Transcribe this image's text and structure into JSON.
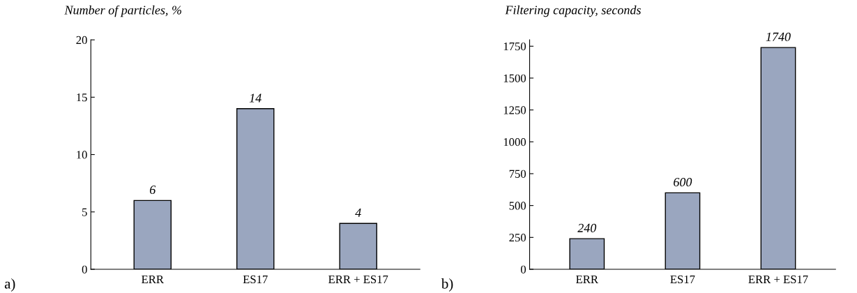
{
  "chart_data": [
    {
      "type": "bar",
      "ylabel": "Number of particles, %",
      "categories": [
        "ERR",
        "ES17",
        "ERR + ES17"
      ],
      "values": [
        6,
        14,
        4
      ],
      "color": "#9aa6bf",
      "ylim": [
        0,
        20
      ],
      "yticks": [
        0,
        5,
        10,
        15,
        20
      ],
      "data_labels": true,
      "grid": false,
      "annotations": [
        "a)"
      ]
    },
    {
      "type": "bar",
      "ylabel": "Filtering capacity, seconds",
      "categories": [
        "ERR",
        "ES17",
        "ERR + ES17"
      ],
      "values": [
        240,
        600,
        1740
      ],
      "color": "#9aa6bf",
      "ylim": [
        0,
        1800
      ],
      "yticks": [
        0,
        250,
        500,
        750,
        1000,
        1250,
        1500,
        1750
      ],
      "data_labels": true,
      "grid": false,
      "annotations": [
        "b)"
      ]
    }
  ]
}
